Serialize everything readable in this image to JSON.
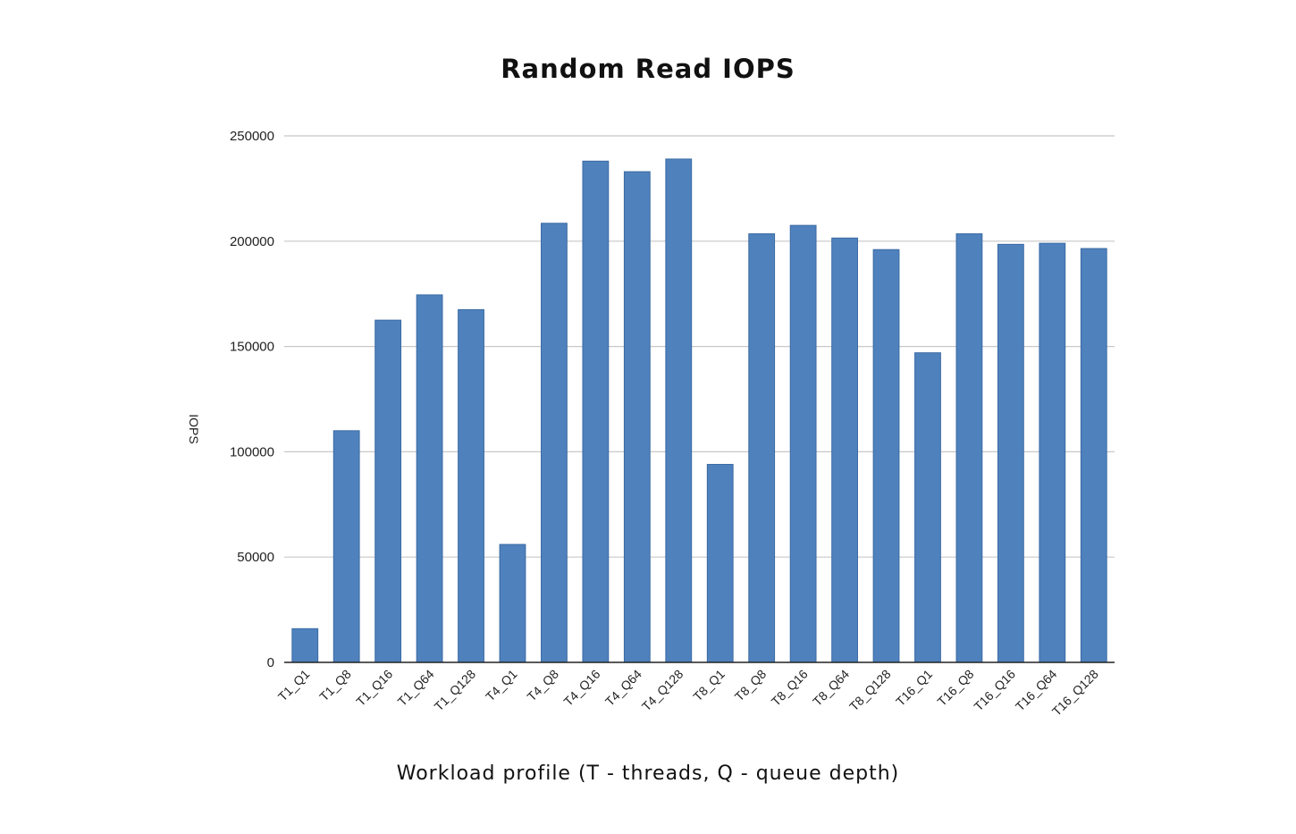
{
  "chart_data": {
    "type": "bar",
    "title": "Random Read IOPS",
    "xlabel": "Workload profile (T - threads, Q - queue depth)",
    "ylabel": "IOPS",
    "ylim": [
      0,
      250000
    ],
    "yticks": [
      0,
      50000,
      100000,
      150000,
      200000,
      250000
    ],
    "ytick_labels": [
      "0",
      "50000",
      "100000",
      "150000",
      "200000",
      "250000"
    ],
    "grid": true,
    "legend": "none",
    "bar_color": "#4f81bd",
    "categories": [
      "T1_Q1",
      "T1_Q8",
      "T1_Q16",
      "T1_Q64",
      "T1_Q128",
      "T4_Q1",
      "T4_Q8",
      "T4_Q16",
      "T4_Q64",
      "T4_Q128",
      "T8_Q1",
      "T8_Q8",
      "T8_Q16",
      "T8_Q64",
      "T8_Q128",
      "T16_Q1",
      "T16_Q8",
      "T16_Q16",
      "T16_Q64",
      "T16_Q128"
    ],
    "values": [
      16000,
      110000,
      162500,
      174500,
      167500,
      56000,
      208500,
      238000,
      233000,
      239000,
      94000,
      203500,
      207500,
      201500,
      196000,
      147000,
      203500,
      198500,
      199000,
      196500
    ]
  }
}
